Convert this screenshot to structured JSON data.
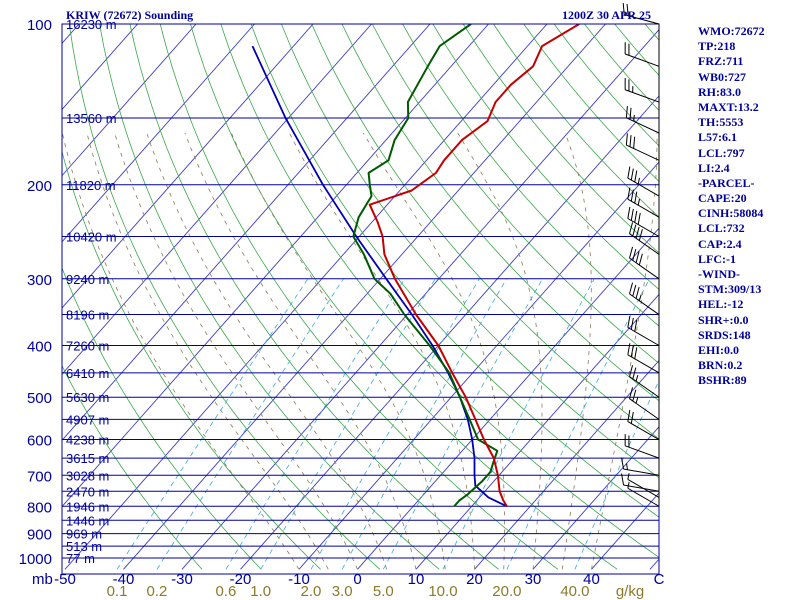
{
  "header": {
    "station": "KRIW (72672) Sounding",
    "valid_time": "1200Z 30 APR 25"
  },
  "sidebar": {
    "items": [
      "WMO:72672",
      "TP:218",
      "FRZ:711",
      "WB0:727",
      "RH:83.0",
      "MAXT:13.2",
      "TH:5553",
      "L57:6.1",
      "LCL:797",
      "LI:2.4",
      "-PARCEL-",
      "CAPE:20",
      "CINH:58084",
      "LCL:732",
      "CAP:2.4",
      "LFC:-1",
      "-WIND-",
      "STM:309/13",
      "HEL:-12",
      "SHR+:0.0",
      "SRDS:148",
      "EHI:0.0",
      "BRN:0.2",
      "BSHR:89"
    ]
  },
  "colors": {
    "isobar": "#00009c",
    "isotherm": "#3c3cc8",
    "dry_adiabat": "#3aa84a",
    "mixing_ratio": "#3aaad8",
    "moist_adiabat": "#8a7a5a",
    "temperature": "#c40000",
    "dewpoint": "#005a00",
    "parcel": "#0000b4",
    "label": "#00009c",
    "mixing_label": "#8a7a2a",
    "wind_barb": "#000000"
  },
  "chart_data": {
    "type": "skew-t",
    "pressure_unit": "mb",
    "mixing_unit": "g/kg",
    "pressure_labels": [
      {
        "p": 100,
        "label": "100"
      },
      {
        "p": 200,
        "label": "200"
      },
      {
        "p": 300,
        "label": "300"
      },
      {
        "p": 400,
        "label": "400"
      },
      {
        "p": 500,
        "label": "500"
      },
      {
        "p": 600,
        "label": "600"
      },
      {
        "p": 700,
        "label": "700"
      },
      {
        "p": 800,
        "label": "800"
      },
      {
        "p": 900,
        "label": "900"
      },
      {
        "p": 1000,
        "label": "1000"
      }
    ],
    "height_labels": [
      {
        "p": 100,
        "label": "16230 m"
      },
      {
        "p": 150,
        "label": "13560 m"
      },
      {
        "p": 200,
        "label": "11820 m"
      },
      {
        "p": 250,
        "label": "10420 m"
      },
      {
        "p": 300,
        "label": "9240 m"
      },
      {
        "p": 350,
        "label": "8196 m"
      },
      {
        "p": 400,
        "label": "7260 m"
      },
      {
        "p": 450,
        "label": "6410 m"
      },
      {
        "p": 500,
        "label": "5630 m"
      },
      {
        "p": 550,
        "label": "4907 m"
      },
      {
        "p": 600,
        "label": "4238 m"
      },
      {
        "p": 650,
        "label": "3615 m"
      },
      {
        "p": 700,
        "label": "3028 m"
      },
      {
        "p": 750,
        "label": "2470 m"
      },
      {
        "p": 800,
        "label": "1946 m"
      },
      {
        "p": 850,
        "label": "1446 m"
      },
      {
        "p": 900,
        "label": "969 m"
      },
      {
        "p": 950,
        "label": "513 m"
      },
      {
        "p": 1000,
        "label": "77 m"
      }
    ],
    "temp_ticks": [
      {
        "t": -50,
        "label": "-50"
      },
      {
        "t": -40,
        "label": "-40"
      },
      {
        "t": -30,
        "label": "-30"
      },
      {
        "t": -20,
        "label": "-20"
      },
      {
        "t": -10,
        "label": "-10"
      },
      {
        "t": 0,
        "label": "0"
      },
      {
        "t": 10,
        "label": "10"
      },
      {
        "t": 20,
        "label": "20"
      },
      {
        "t": 30,
        "label": "30"
      },
      {
        "t": 40,
        "label": "40"
      }
    ],
    "temp_unit_label": "C",
    "mixing_ratios": [
      {
        "w": 0.1,
        "label": "0.1"
      },
      {
        "w": 0.2,
        "label": "0.2"
      },
      {
        "w": 0.6,
        "label": "0.6"
      },
      {
        "w": 1.0,
        "label": "1.0"
      },
      {
        "w": 2.0,
        "label": "2.0"
      },
      {
        "w": 3.0,
        "label": "3.0"
      },
      {
        "w": 5.0,
        "label": "5.0"
      },
      {
        "w": 10.0,
        "label": "10.0"
      },
      {
        "w": 20.0,
        "label": "20.0"
      },
      {
        "w": 40.0,
        "label": "40.0"
      }
    ],
    "temperature": [
      {
        "p": 800,
        "t": 16.0
      },
      {
        "p": 780,
        "t": 14.5
      },
      {
        "p": 750,
        "t": 12.5
      },
      {
        "p": 700,
        "t": 9.8
      },
      {
        "p": 650,
        "t": 6.5
      },
      {
        "p": 600,
        "t": 2.0
      },
      {
        "p": 550,
        "t": -2.5
      },
      {
        "p": 500,
        "t": -7.5
      },
      {
        "p": 450,
        "t": -13.5
      },
      {
        "p": 400,
        "t": -20.0
      },
      {
        "p": 350,
        "t": -28.5
      },
      {
        "p": 300,
        "t": -37.5
      },
      {
        "p": 270,
        "t": -43.0
      },
      {
        "p": 250,
        "t": -46.0
      },
      {
        "p": 235,
        "t": -49.0
      },
      {
        "p": 218,
        "t": -53.0
      },
      {
        "p": 205,
        "t": -48.0
      },
      {
        "p": 190,
        "t": -46.5
      },
      {
        "p": 180,
        "t": -47.0
      },
      {
        "p": 165,
        "t": -47.0
      },
      {
        "p": 152,
        "t": -45.5
      },
      {
        "p": 140,
        "t": -47.0
      },
      {
        "p": 130,
        "t": -47.0
      },
      {
        "p": 120,
        "t": -46.0
      },
      {
        "p": 110,
        "t": -47.5
      },
      {
        "p": 100,
        "t": -44.5
      }
    ],
    "dewpoint": [
      {
        "p": 800,
        "t": 7.0
      },
      {
        "p": 780,
        "t": 7.0
      },
      {
        "p": 760,
        "t": 7.5
      },
      {
        "p": 720,
        "t": 8.0
      },
      {
        "p": 690,
        "t": 8.0
      },
      {
        "p": 660,
        "t": 7.0
      },
      {
        "p": 630,
        "t": 6.0
      },
      {
        "p": 600,
        "t": 1.0
      },
      {
        "p": 550,
        "t": -3.5
      },
      {
        "p": 500,
        "t": -8.5
      },
      {
        "p": 450,
        "t": -14.0
      },
      {
        "p": 400,
        "t": -21.5
      },
      {
        "p": 350,
        "t": -30.5
      },
      {
        "p": 320,
        "t": -36.0
      },
      {
        "p": 300,
        "t": -41.0
      },
      {
        "p": 270,
        "t": -46.5
      },
      {
        "p": 250,
        "t": -51.0
      },
      {
        "p": 230,
        "t": -53.0
      },
      {
        "p": 210,
        "t": -54.0
      },
      {
        "p": 200,
        "t": -56.0
      },
      {
        "p": 190,
        "t": -58.0
      },
      {
        "p": 180,
        "t": -56.5
      },
      {
        "p": 165,
        "t": -58.5
      },
      {
        "p": 150,
        "t": -59.5
      },
      {
        "p": 140,
        "t": -62.0
      },
      {
        "p": 120,
        "t": -64.0
      },
      {
        "p": 110,
        "t": -65.0
      },
      {
        "p": 100,
        "t": -63.0
      }
    ],
    "parcel": [
      {
        "p": 800,
        "t": 16.0
      },
      {
        "p": 770,
        "t": 11.5
      },
      {
        "p": 732,
        "t": 7.5
      },
      {
        "p": 700,
        "t": 5.8
      },
      {
        "p": 650,
        "t": 3.2
      },
      {
        "p": 600,
        "t": 0.0
      },
      {
        "p": 550,
        "t": -3.8
      },
      {
        "p": 500,
        "t": -8.5
      },
      {
        "p": 450,
        "t": -14.2
      },
      {
        "p": 400,
        "t": -21.0
      },
      {
        "p": 350,
        "t": -29.2
      },
      {
        "p": 300,
        "t": -39.0
      },
      {
        "p": 250,
        "t": -50.5
      },
      {
        "p": 200,
        "t": -64.0
      },
      {
        "p": 150,
        "t": -80.5
      },
      {
        "p": 110,
        "t": -97.0
      }
    ],
    "winds": [
      {
        "p": 800,
        "dir": 300,
        "spd": 5
      },
      {
        "p": 770,
        "dir": 300,
        "spd": 5
      },
      {
        "p": 750,
        "dir": 280,
        "spd": 10
      },
      {
        "p": 700,
        "dir": 280,
        "spd": 15
      },
      {
        "p": 650,
        "dir": 290,
        "spd": 20
      },
      {
        "p": 600,
        "dir": 300,
        "spd": 20
      },
      {
        "p": 550,
        "dir": 305,
        "spd": 25
      },
      {
        "p": 500,
        "dir": 305,
        "spd": 25
      },
      {
        "p": 450,
        "dir": 300,
        "spd": 30
      },
      {
        "p": 400,
        "dir": 300,
        "spd": 30
      },
      {
        "p": 350,
        "dir": 305,
        "spd": 35
      },
      {
        "p": 300,
        "dir": 305,
        "spd": 40
      },
      {
        "p": 270,
        "dir": 305,
        "spd": 40
      },
      {
        "p": 250,
        "dir": 300,
        "spd": 40
      },
      {
        "p": 230,
        "dir": 300,
        "spd": 35
      },
      {
        "p": 210,
        "dir": 300,
        "spd": 35
      },
      {
        "p": 180,
        "dir": 295,
        "spd": 30
      },
      {
        "p": 160,
        "dir": 295,
        "spd": 25
      },
      {
        "p": 140,
        "dir": 290,
        "spd": 25
      },
      {
        "p": 120,
        "dir": 290,
        "spd": 20
      },
      {
        "p": 100,
        "dir": 285,
        "spd": 20
      }
    ]
  }
}
